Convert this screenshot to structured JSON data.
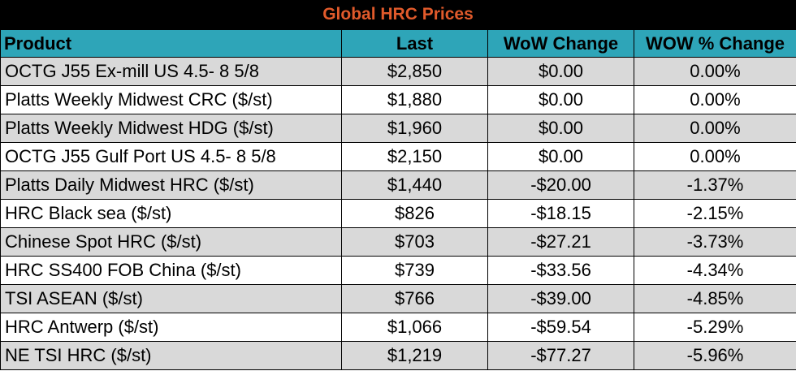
{
  "title": "Global HRC Prices",
  "headers": [
    "Product",
    "Last",
    "WoW Change",
    "WOW % Change"
  ],
  "rows": [
    {
      "product": "OCTG J55 Ex-mill US 4.5- 8 5/8",
      "last": "$2,850",
      "wow": "$0.00",
      "pct": "0.00%"
    },
    {
      "product": "Platts Weekly Midwest CRC ($/st)",
      "last": "$1,880",
      "wow": "$0.00",
      "pct": "0.00%"
    },
    {
      "product": "Platts Weekly Midwest HDG ($/st)",
      "last": "$1,960",
      "wow": "$0.00",
      "pct": "0.00%"
    },
    {
      "product": "OCTG J55 Gulf Port US 4.5- 8 5/8",
      "last": "$2,150",
      "wow": "$0.00",
      "pct": "0.00%"
    },
    {
      "product": "Platts Daily Midwest HRC ($/st)",
      "last": "$1,440",
      "wow": "-$20.00",
      "pct": "-1.37%"
    },
    {
      "product": "HRC Black sea ($/st)",
      "last": "$826",
      "wow": "-$18.15",
      "pct": "-2.15%"
    },
    {
      "product": "Chinese Spot HRC ($/st)",
      "last": "$703",
      "wow": "-$27.21",
      "pct": "-3.73%"
    },
    {
      "product": "HRC SS400 FOB China ($/st)",
      "last": "$739",
      "wow": "-$33.56",
      "pct": "-4.34%"
    },
    {
      "product": "TSI ASEAN ($/st)",
      "last": "$766",
      "wow": "-$39.00",
      "pct": "-4.85%"
    },
    {
      "product": "HRC Antwerp ($/st)",
      "last": "$1,066",
      "wow": "-$59.54",
      "pct": "-5.29%"
    },
    {
      "product": "NE TSI HRC ($/st)",
      "last": "$1,219",
      "wow": "-$77.27",
      "pct": "-5.96%"
    }
  ],
  "colors": {
    "title_bg": "#000000",
    "title_text": "#e05a2b",
    "header_bg": "#2ea5b8",
    "row_shade": "#d9d9d9"
  }
}
